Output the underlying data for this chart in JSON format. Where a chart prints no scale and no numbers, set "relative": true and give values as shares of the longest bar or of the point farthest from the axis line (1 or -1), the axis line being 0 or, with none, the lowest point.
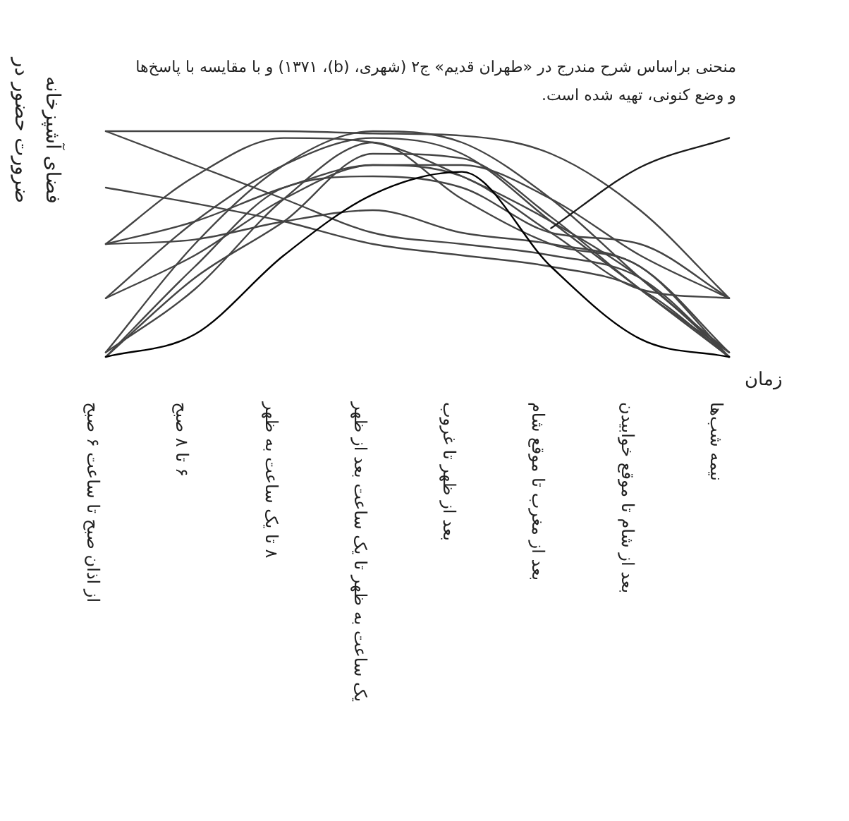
{
  "chart_data": {
    "type": "line",
    "relative": true,
    "ylabel": "ضرورت حضور در فضای آشپزخانه",
    "xlabel": "زمان",
    "annotations": [
      "منحنی براساس شرح مندرج در «طهران قدیم» ج۲ (شهری، (b)، ۱۳۷۱) و با مقایسه با پاسخ‌ها و وضع کنونی، تهیه شده است."
    ],
    "categories": [
      "از اذان صبح تا ساعت ۶ صبح",
      "۶ تا ۸ صبح",
      "۸ تا یک ساعت به ظهر",
      "یک ساعت به ظهر تا یک ساعت بعد از ظهر",
      "بعد از ظهر تا غروب",
      "بعد از مغرب تا موقع شام",
      "بعد از شام تا موقع خوابیدن",
      "نیمه شب‌ها"
    ],
    "series": [
      {
        "color": "#444444",
        "values": [
          1.0,
          1.0,
          1.0,
          0.99,
          0.98,
          0.9,
          0.65,
          0.26
        ]
      },
      {
        "color": "#444444",
        "values": [
          1.0,
          0.85,
          0.7,
          0.55,
          0.5,
          0.45,
          0.35,
          0
        ]
      },
      {
        "color": "#444444",
        "values": [
          0.75,
          0.68,
          0.6,
          0.5,
          0.45,
          0.4,
          0.3,
          0
        ]
      },
      {
        "color": "#444444",
        "values": [
          0.5,
          0.8,
          0.97,
          0.95,
          0.8,
          0.6,
          0.35,
          0
        ]
      },
      {
        "color": "#444444",
        "values": [
          0.5,
          0.6,
          0.75,
          0.85,
          0.8,
          0.55,
          0.3,
          0.26
        ]
      },
      {
        "color": "#444444",
        "values": [
          0.5,
          0.52,
          0.6,
          0.65,
          0.55,
          0.5,
          0.4,
          0.02
        ]
      },
      {
        "color": "#444444",
        "values": [
          0.26,
          0.6,
          0.85,
          0.97,
          0.9,
          0.6,
          0.3,
          0
        ]
      },
      {
        "color": "#444444",
        "values": [
          0.26,
          0.45,
          0.7,
          0.85,
          0.85,
          0.7,
          0.45,
          0.26
        ]
      },
      {
        "color": "#444444",
        "values": [
          0.02,
          0.5,
          0.85,
          1.0,
          0.95,
          0.7,
          0.35,
          0.02
        ]
      },
      {
        "color": "#444444",
        "values": [
          0,
          0.4,
          0.75,
          0.8,
          0.75,
          0.55,
          0.5,
          0.26
        ]
      },
      {
        "color": "#444444",
        "values": [
          0,
          0.35,
          0.6,
          0.9,
          0.88,
          0.62,
          0.3,
          0.02
        ]
      },
      {
        "color": "#444444",
        "values": [
          0.02,
          0.3,
          0.7,
          0.95,
          0.7,
          0.5,
          0.4,
          0
        ]
      },
      {
        "color": "#1a1a1a",
        "values": [
          null,
          null,
          null,
          null,
          null,
          0.57,
          0.84,
          0.97
        ]
      },
      {
        "color": "#000000",
        "values": [
          0,
          0.1,
          0.45,
          0.72,
          0.82,
          0.4,
          0.08,
          0
        ]
      }
    ]
  }
}
